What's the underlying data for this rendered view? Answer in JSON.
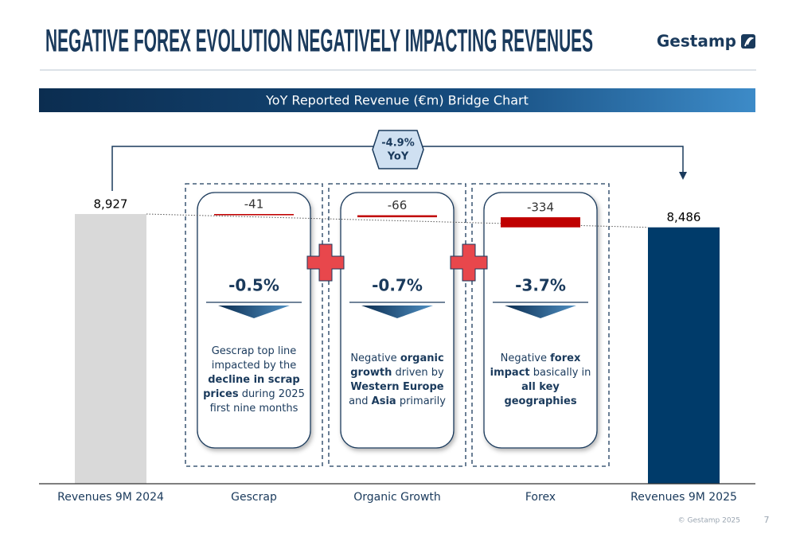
{
  "header": {
    "title": "NEGATIVE FOREX EVOLUTION NEGATIVELY IMPACTING REVENUES",
    "logo": "Gestamp"
  },
  "chart_data": {
    "type": "waterfall",
    "title": "YoY Reported Revenue (€m) Bridge Chart",
    "yoy_change": "-4.9%",
    "yoy_label": "YoY",
    "categories": [
      "Revenues 9M 2024",
      "Gescrap",
      "Organic Growth",
      "Forex",
      "Revenues 9M 2025"
    ],
    "values": [
      8927,
      -41,
      -66,
      -334,
      8486
    ],
    "value_labels": [
      "8,927",
      "-41",
      "-66",
      "-334",
      "8,486"
    ],
    "kinds": [
      "total",
      "delta",
      "delta",
      "delta",
      "total"
    ],
    "colors": [
      "#d9d9d9",
      "#c00000",
      "#c00000",
      "#c00000",
      "#003b6a"
    ],
    "steps": [
      {
        "change": "-0.5%",
        "note": [
          {
            "text": "Gescrap top line impacted by the ",
            "bold": false
          },
          {
            "text": "decline in scrap prices",
            "bold": true
          },
          {
            "text": " during 2025 first nine months",
            "bold": false
          }
        ]
      },
      {
        "change": "-0.7%",
        "note": [
          {
            "text": "Negative ",
            "bold": false
          },
          {
            "text": "organic growth",
            "bold": true
          },
          {
            "text": " driven by ",
            "bold": false
          },
          {
            "text": "Western Europe",
            "bold": true
          },
          {
            "text": " and ",
            "bold": false
          },
          {
            "text": "Asia",
            "bold": true
          },
          {
            "text": " primarily",
            "bold": false
          }
        ]
      },
      {
        "change": "-3.7%",
        "note": [
          {
            "text": "Negative ",
            "bold": false
          },
          {
            "text": "forex impact",
            "bold": true
          },
          {
            "text": " basically in ",
            "bold": false
          },
          {
            "text": "all key geographies",
            "bold": true
          }
        ]
      }
    ]
  },
  "footer": {
    "copyright": "© Gestamp 2025",
    "page": "7"
  }
}
